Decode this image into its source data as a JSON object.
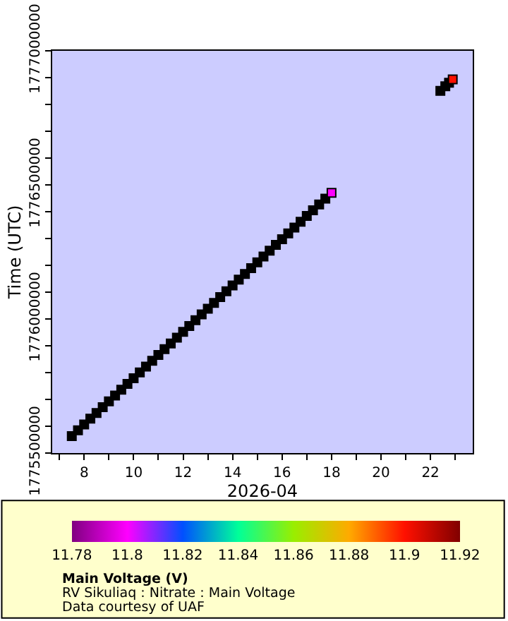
{
  "chart_data": {
    "type": "scatter",
    "xlabel": "2026-04",
    "ylabel": "Time (UTC)",
    "clabel": "Main Voltage (V)",
    "annotations": [
      "RV Sikuliaq : Nitrate : Main Voltage",
      "Data courtesy of UAF"
    ],
    "marker": "square",
    "grid": false,
    "xlim": [
      "2026-04-06T17:00",
      "2026-04-23T17:00"
    ],
    "xticks": [
      {
        "value": "2026-04-07",
        "label": null
      },
      {
        "value": "2026-04-08",
        "label": "8"
      },
      {
        "value": "2026-04-09",
        "label": null
      },
      {
        "value": "2026-04-10",
        "label": "10"
      },
      {
        "value": "2026-04-11",
        "label": null
      },
      {
        "value": "2026-04-12",
        "label": "12"
      },
      {
        "value": "2026-04-13",
        "label": null
      },
      {
        "value": "2026-04-14",
        "label": "14"
      },
      {
        "value": "2026-04-15",
        "label": null
      },
      {
        "value": "2026-04-16",
        "label": "16"
      },
      {
        "value": "2026-04-17",
        "label": null
      },
      {
        "value": "2026-04-18",
        "label": "18"
      },
      {
        "value": "2026-04-19",
        "label": null
      },
      {
        "value": "2026-04-20",
        "label": "20"
      },
      {
        "value": "2026-04-21",
        "label": null
      },
      {
        "value": "2026-04-22",
        "label": "22"
      },
      {
        "value": "2026-04-23",
        "label": null
      }
    ],
    "ylim": [
      1775500000,
      1777000000
    ],
    "yticks": [
      1775500000,
      {
        "value": 1775600000,
        "label": null
      },
      {
        "value": 1775700000,
        "label": null
      },
      {
        "value": 1775800000,
        "label": null
      },
      {
        "value": 1775900000,
        "label": null
      },
      1776000000,
      {
        "value": 1776100000,
        "label": null
      },
      {
        "value": 1776200000,
        "label": null
      },
      {
        "value": 1776300000,
        "label": null
      },
      {
        "value": 1776400000,
        "label": null
      },
      1776500000,
      {
        "value": 1776600000,
        "label": null
      },
      {
        "value": 1776700000,
        "label": null
      },
      {
        "value": 1776800000,
        "label": null
      },
      {
        "value": 1776900000,
        "label": null
      },
      1777000000
    ],
    "clim": [
      11.78,
      11.92
    ],
    "cticks": [
      11.78,
      11.8,
      11.82,
      11.84,
      11.86,
      11.88,
      11.9,
      11.92
    ],
    "series": [
      {
        "color": "#000000",
        "x": [
          "2026-04-07T12:00",
          "2026-04-07T18:00",
          "2026-04-08T00:00",
          "2026-04-08T06:00",
          "2026-04-08T12:00",
          "2026-04-08T18:00",
          "2026-04-09T00:00",
          "2026-04-09T06:00",
          "2026-04-09T12:00",
          "2026-04-09T18:00",
          "2026-04-10T00:00",
          "2026-04-10T06:00",
          "2026-04-10T12:00",
          "2026-04-10T18:00",
          "2026-04-11T00:00",
          "2026-04-11T06:00",
          "2026-04-11T12:00",
          "2026-04-11T18:00",
          "2026-04-12T00:00",
          "2026-04-12T06:00",
          "2026-04-12T12:00",
          "2026-04-12T18:00",
          "2026-04-13T00:00",
          "2026-04-13T06:00",
          "2026-04-13T12:00",
          "2026-04-13T18:00",
          "2026-04-14T00:00",
          "2026-04-14T06:00",
          "2026-04-14T12:00",
          "2026-04-14T18:00",
          "2026-04-15T00:00",
          "2026-04-15T06:00",
          "2026-04-15T12:00",
          "2026-04-15T18:00",
          "2026-04-16T00:00",
          "2026-04-16T06:00",
          "2026-04-16T12:00",
          "2026-04-16T18:00",
          "2026-04-17T00:00",
          "2026-04-17T06:00",
          "2026-04-17T12:00",
          "2026-04-17T18:00",
          null,
          "2026-04-22T09:36",
          "2026-04-22T14:24",
          "2026-04-22T18:00"
        ],
        "values": [
          1775563200,
          1775584800,
          1775606400,
          1775628000,
          1775649600,
          1775671200,
          1775692800,
          1775714400,
          1775736000,
          1775757600,
          1775779200,
          1775800800,
          1775822400,
          1775844000,
          1775865600,
          1775887200,
          1775908800,
          1775930400,
          1775952000,
          1775973600,
          1775995200,
          1776016800,
          1776038400,
          1776060000,
          1776081600,
          1776103200,
          1776124800,
          1776146400,
          1776168000,
          1776189600,
          1776211200,
          1776232800,
          1776254400,
          1776276000,
          1776297600,
          1776319200,
          1776340800,
          1776362400,
          1776384000,
          1776405600,
          1776427200,
          1776448800,
          null,
          1776850560,
          1776867840,
          1776880800
        ]
      },
      {
        "x": [
          "2026-04-18T00:00"
        ],
        "values": [
          1776470400
        ],
        "cvalues": [
          11.8
        ]
      },
      {
        "x": [
          "2026-04-22T21:36"
        ],
        "values": [
          1776893760
        ],
        "cvalues": [
          11.9
        ]
      }
    ]
  }
}
